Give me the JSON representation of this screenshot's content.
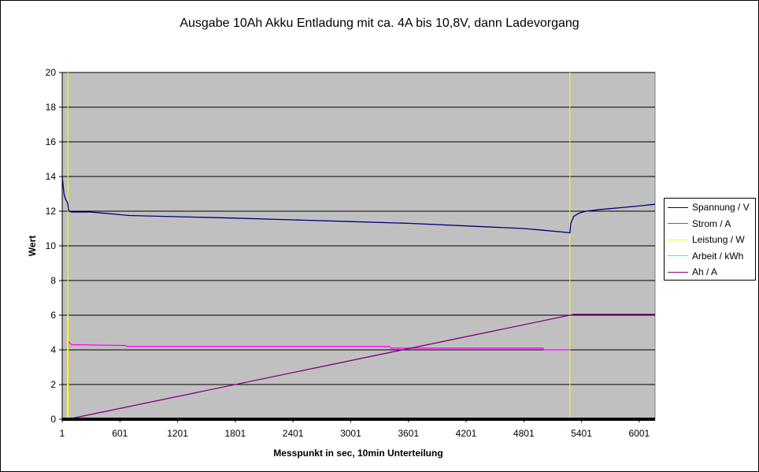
{
  "chart_data": {
    "type": "line",
    "title": "Ausgabe 10Ah Akku Entladung mit ca. 4A bis 10,8V, dann Ladevorgang",
    "xlabel": "Messpunkt in sec, 10min Unterteilung",
    "ylabel": "Wert",
    "xlim": [
      1,
      6166
    ],
    "ylim": [
      0,
      20
    ],
    "x_ticks": [
      "1",
      "601",
      "1201",
      "1801",
      "2401",
      "3001",
      "3601",
      "4201",
      "4801",
      "5401",
      "6001"
    ],
    "y_ticks": [
      "0",
      "2",
      "4",
      "6",
      "8",
      "10",
      "12",
      "14",
      "16",
      "18",
      "20"
    ],
    "grid": true,
    "plot_background": "#c0c0c0",
    "legend_position": "right",
    "series": [
      {
        "name": "Spannung / V",
        "color": "#000080",
        "points": [
          [
            1,
            14.0
          ],
          [
            10,
            13.5
          ],
          [
            20,
            13.0
          ],
          [
            35,
            12.7
          ],
          [
            55,
            12.5
          ],
          [
            60,
            12.4
          ],
          [
            70,
            12.0
          ],
          [
            100,
            11.95
          ],
          [
            300,
            11.95
          ],
          [
            400,
            11.9
          ],
          [
            600,
            11.8
          ],
          [
            700,
            11.75
          ],
          [
            1800,
            11.6
          ],
          [
            2400,
            11.5
          ],
          [
            3000,
            11.4
          ],
          [
            3600,
            11.3
          ],
          [
            4200,
            11.15
          ],
          [
            4800,
            11.0
          ],
          [
            5000,
            10.9
          ],
          [
            5200,
            10.8
          ],
          [
            5280,
            10.75
          ],
          [
            5290,
            11.3
          ],
          [
            5320,
            11.7
          ],
          [
            5380,
            11.9
          ],
          [
            5450,
            12.0
          ],
          [
            5600,
            12.1
          ],
          [
            5800,
            12.2
          ],
          [
            6000,
            12.3
          ],
          [
            6166,
            12.4
          ]
        ]
      },
      {
        "name": "Strom / A",
        "color": "#ff00ff",
        "points": [
          [
            1,
            0
          ],
          [
            60,
            0
          ],
          [
            62,
            1.5
          ],
          [
            65,
            4.5
          ],
          [
            80,
            4.4
          ],
          [
            100,
            4.3
          ],
          [
            660,
            4.25
          ],
          [
            680,
            4.2
          ],
          [
            3400,
            4.2
          ],
          [
            3420,
            4.1
          ],
          [
            5000,
            4.1
          ],
          [
            5010,
            4.0
          ],
          [
            5280,
            4.0
          ]
        ]
      },
      {
        "name": "Leistung / W",
        "color": "#ffff00",
        "points": [
          [
            1,
            0
          ],
          [
            55,
            0
          ],
          [
            58,
            6.0
          ],
          [
            62,
            6.0
          ],
          [
            65,
            0
          ],
          [
            6166,
            0
          ]
        ]
      },
      {
        "name": "Arbeit / kWh",
        "color": "#00ffff",
        "points": [
          [
            1,
            0.02
          ],
          [
            6166,
            0.02
          ]
        ]
      },
      {
        "name": "Ah / A",
        "color": "#800080",
        "points": [
          [
            1,
            0
          ],
          [
            60,
            0
          ],
          [
            5280,
            6.0
          ],
          [
            5320,
            6.05
          ],
          [
            6166,
            6.05
          ]
        ]
      }
    ],
    "markers": [
      {
        "x": 60,
        "color": "#ffff00"
      },
      {
        "x": 5280,
        "color": "#ffff00"
      }
    ]
  }
}
